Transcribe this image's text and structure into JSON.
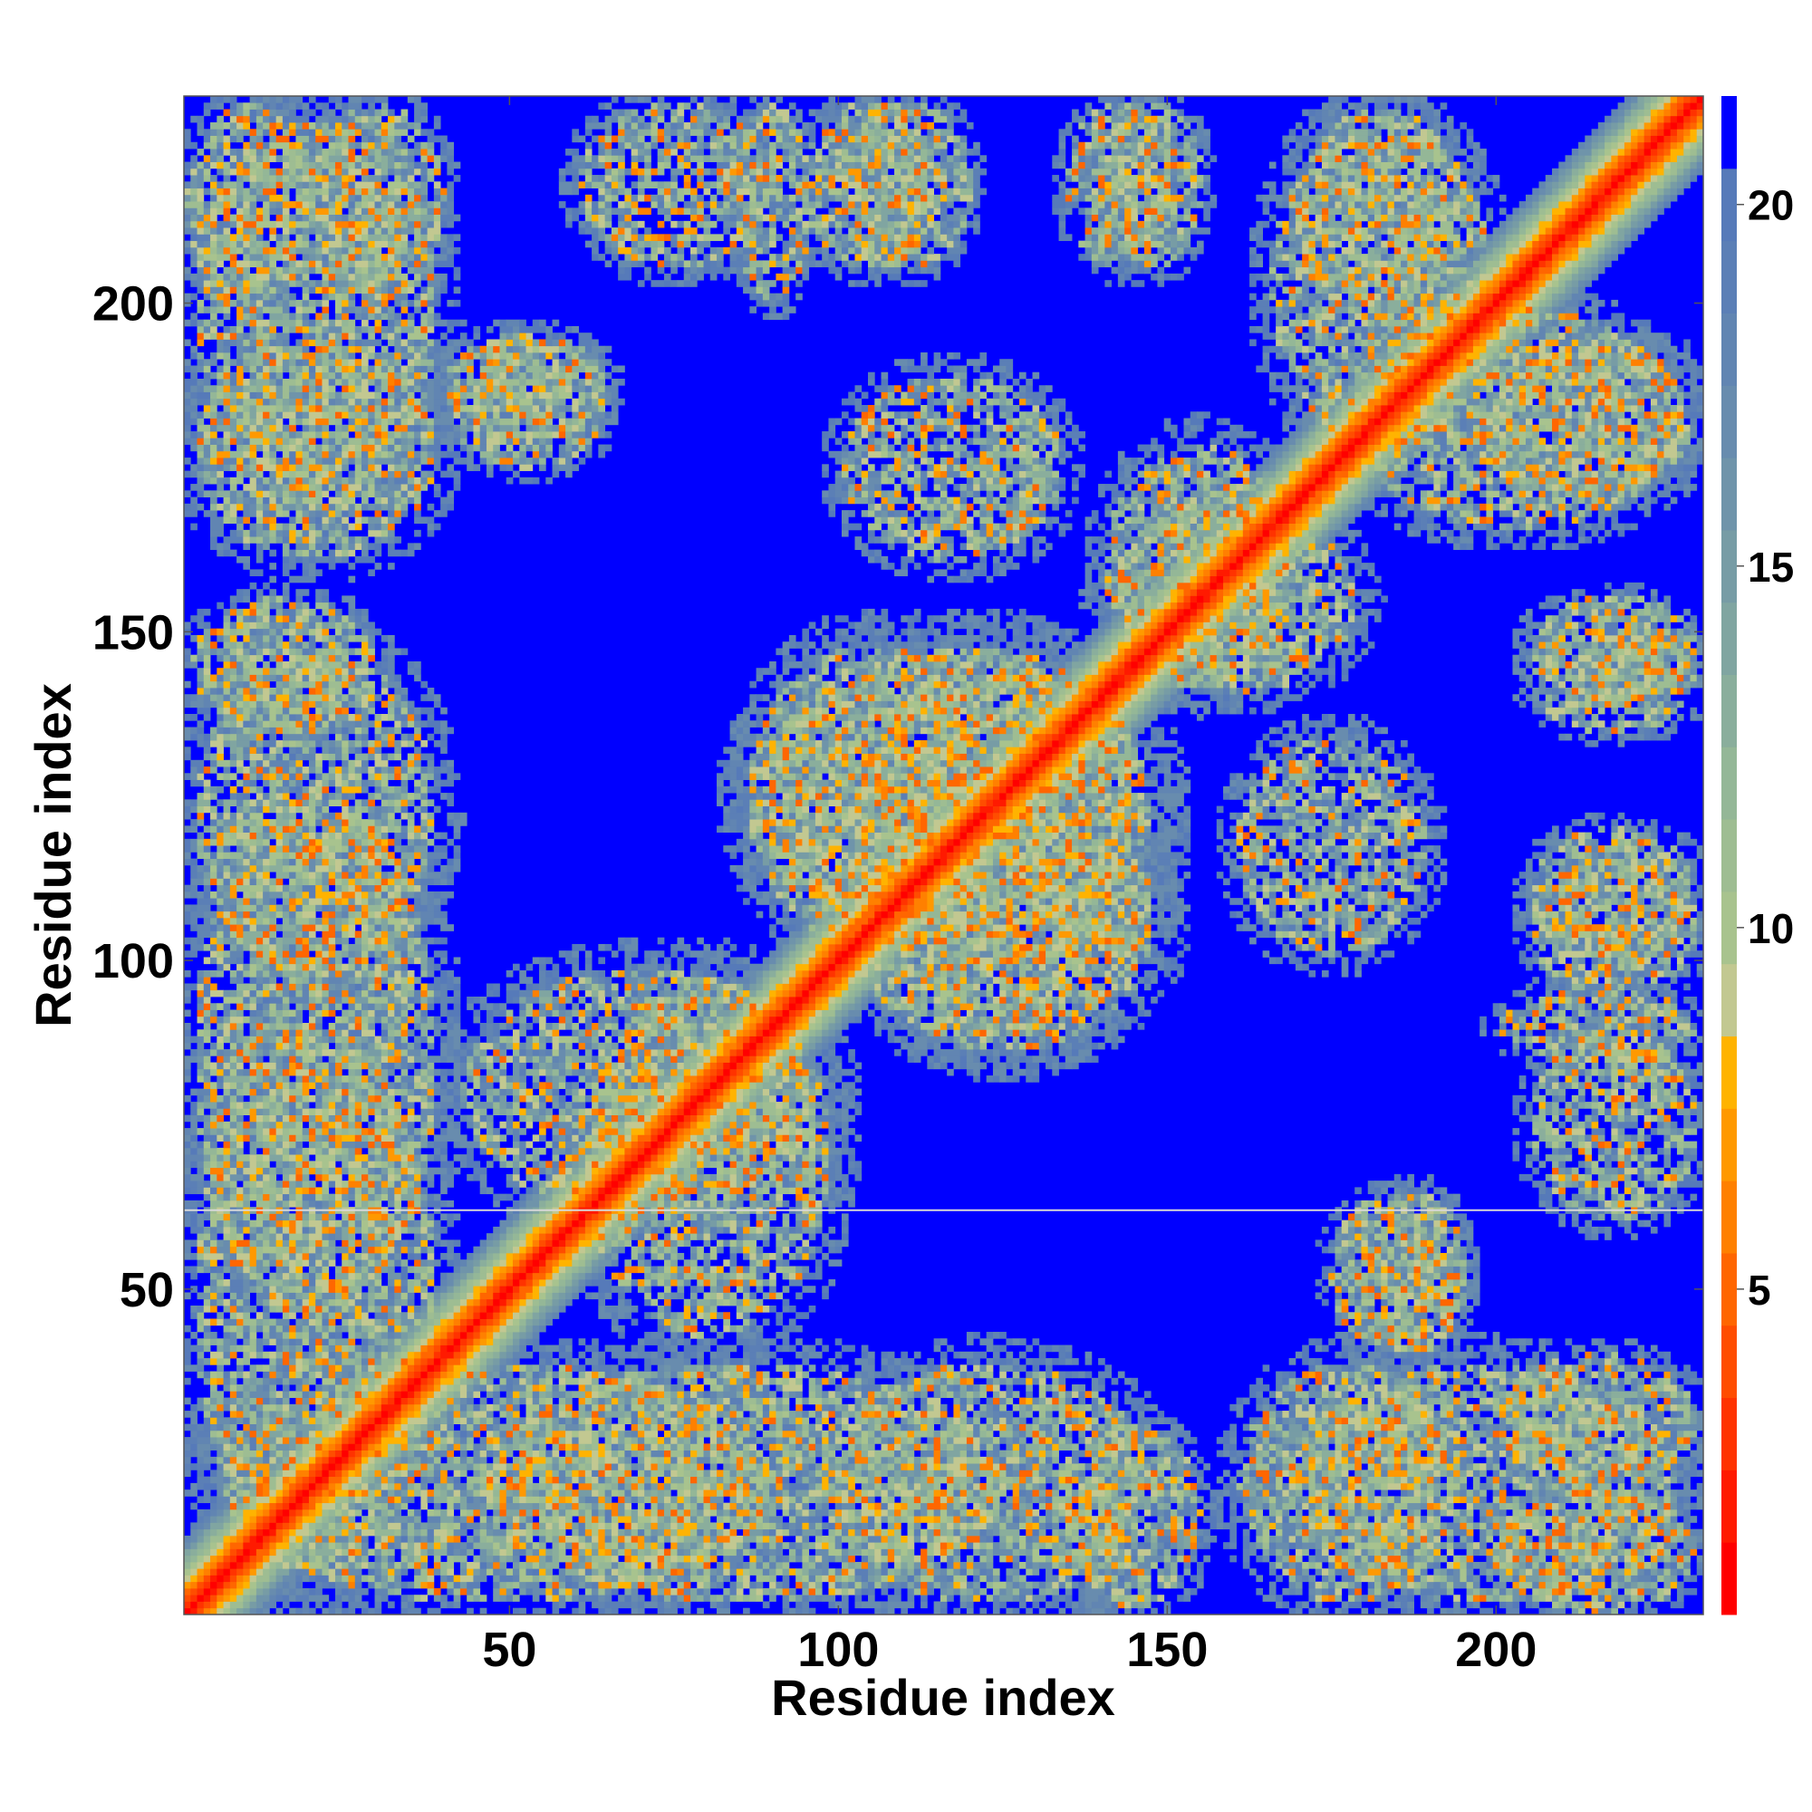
{
  "chart_data": {
    "type": "heatmap",
    "title": "",
    "xlabel": "Residue index",
    "ylabel": "Residue index",
    "xlim": [
      1,
      231
    ],
    "ylim": [
      1,
      231
    ],
    "x_ticks": [
      50,
      100,
      150,
      200
    ],
    "y_ticks": [
      50,
      100,
      150,
      200
    ],
    "colorbar": {
      "range": [
        0.5,
        21.5
      ],
      "ticks": [
        5,
        10,
        15,
        20
      ],
      "bins": [
        {
          "min": 0.5,
          "max": 1.5,
          "color": "#ff0000"
        },
        {
          "min": 1.5,
          "max": 2.5,
          "color": "#ff1a00"
        },
        {
          "min": 2.5,
          "max": 3.5,
          "color": "#ff3300"
        },
        {
          "min": 3.5,
          "max": 4.5,
          "color": "#ff4d00"
        },
        {
          "min": 4.5,
          "max": 5.5,
          "color": "#ff6600"
        },
        {
          "min": 5.5,
          "max": 6.5,
          "color": "#ff8000"
        },
        {
          "min": 6.5,
          "max": 7.5,
          "color": "#ff9900"
        },
        {
          "min": 7.5,
          "max": 8.5,
          "color": "#ffb300"
        },
        {
          "min": 8.5,
          "max": 9.5,
          "color": "#c2c891"
        },
        {
          "min": 9.5,
          "max": 10.5,
          "color": "#a8c38e"
        },
        {
          "min": 10.5,
          "max": 11.5,
          "color": "#9ebd92"
        },
        {
          "min": 11.5,
          "max": 12.5,
          "color": "#94b797"
        },
        {
          "min": 12.5,
          "max": 13.5,
          "color": "#8aae9c"
        },
        {
          "min": 13.5,
          "max": 14.5,
          "color": "#80a5a1"
        },
        {
          "min": 14.5,
          "max": 15.5,
          "color": "#779ca5"
        },
        {
          "min": 15.5,
          "max": 16.5,
          "color": "#6f94aa"
        },
        {
          "min": 16.5,
          "max": 17.5,
          "color": "#688cae"
        },
        {
          "min": 17.5,
          "max": 18.5,
          "color": "#6185b2"
        },
        {
          "min": 18.5,
          "max": 19.5,
          "color": "#5b7fb6"
        },
        {
          "min": 19.5,
          "max": 20.5,
          "color": "#567ab9"
        },
        {
          "min": 20.5,
          "max": 21.5,
          "color": "#0000ff"
        }
      ]
    },
    "cutoff_value": 21,
    "n_residues": 231,
    "gap_row": 62,
    "diagonal": "residue distance along the sequence (i = j band, values rise from 1 at the diagonal outward)",
    "contact_regions": [
      {
        "x": [
          1,
          20
        ],
        "y": [
          200,
          231
        ]
      },
      {
        "x": [
          20,
          40
        ],
        "y": [
          200,
          231
        ]
      },
      {
        "x": [
          1,
          40
        ],
        "y": [
          160,
          195
        ]
      },
      {
        "x": [
          40,
          65
        ],
        "y": [
          180,
          195
        ]
      },
      {
        "x": [
          85,
          95
        ],
        "y": [
          200,
          231
        ]
      },
      {
        "x": [
          100,
          120
        ],
        "y": [
          205,
          231
        ]
      },
      {
        "x": [
          140,
          155
        ],
        "y": [
          205,
          231
        ]
      },
      {
        "x": [
          170,
          195
        ],
        "y": [
          195,
          231
        ]
      },
      {
        "x": [
          1,
          40
        ],
        "y": [
          95,
          150
        ]
      },
      {
        "x": [
          1,
          40
        ],
        "y": [
          1,
          95
        ]
      },
      {
        "x": [
          40,
          100
        ],
        "y": [
          60,
          100
        ]
      },
      {
        "x": [
          85,
          125
        ],
        "y": [
          100,
          150
        ]
      },
      {
        "x": [
          100,
          150
        ],
        "y": [
          85,
          150
        ]
      },
      {
        "x": [
          140,
          170
        ],
        "y": [
          140,
          180
        ]
      },
      {
        "x": [
          160,
          190
        ],
        "y": [
          100,
          135
        ]
      },
      {
        "x": [
          175,
          231
        ],
        "y": [
          165,
          200
        ]
      },
      {
        "x": [
          205,
          231
        ],
        "y": [
          135,
          150
        ]
      },
      {
        "x": [
          205,
          231
        ],
        "y": [
          95,
          115
        ]
      },
      {
        "x": [
          205,
          231
        ],
        "y": [
          60,
          90
        ]
      },
      {
        "x": [
          175,
          195
        ],
        "y": [
          40,
          65
        ]
      },
      {
        "x": [
          165,
          231
        ],
        "y": [
          1,
          40
        ]
      },
      {
        "x": [
          40,
          130
        ],
        "y": [
          1,
          40
        ]
      },
      {
        "x": [
          135,
          155
        ],
        "y": [
          1,
          30
        ]
      }
    ]
  }
}
